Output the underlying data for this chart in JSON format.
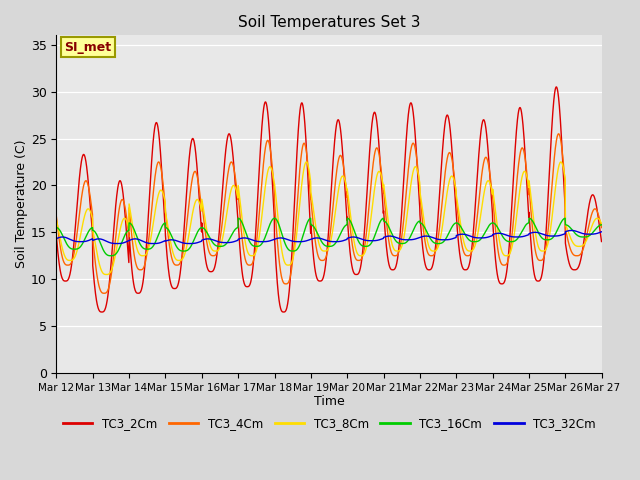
{
  "title": "Soil Temperatures Set 3",
  "xlabel": "Time",
  "ylabel": "Soil Temperature (C)",
  "ylim": [
    0,
    36
  ],
  "background_color": "#dcdcdc",
  "plot_bg_color": "#e8e8e8",
  "fig_bg_color": "#d8d8d8",
  "legend_labels": [
    "TC3_2Cm",
    "TC3_4Cm",
    "TC3_8Cm",
    "TC3_16Cm",
    "TC3_32Cm"
  ],
  "line_colors": [
    "#dd0000",
    "#ff6600",
    "#ffdd00",
    "#00cc00",
    "#0000dd"
  ],
  "annotation_text": "SI_met",
  "annotation_bg": "#ffff99",
  "annotation_border": "#999900",
  "xtick_labels": [
    "Mar 12",
    "Mar 13",
    "Mar 14",
    "Mar 15",
    "Mar 16",
    "Mar 17",
    "Mar 18",
    "Mar 19",
    "Mar 20",
    "Mar 21",
    "Mar 22",
    "Mar 23",
    "Mar 24",
    "Mar 25",
    "Mar 26",
    "Mar 27"
  ],
  "ytick_values": [
    0,
    5,
    10,
    15,
    20,
    25,
    30,
    35
  ],
  "n_days": 15,
  "ppd": 144,
  "peak_hour": 14,
  "peak_vals_2cm": [
    23.3,
    20.5,
    26.7,
    25.0,
    25.5,
    28.9,
    28.8,
    27.0,
    27.8,
    28.8,
    27.5,
    27.0,
    28.3,
    30.5,
    19.0,
    14.5
  ],
  "trough_vals_2cm": [
    9.8,
    6.5,
    8.5,
    9.0,
    10.8,
    9.2,
    6.5,
    9.8,
    10.5,
    11.0,
    11.0,
    11.0,
    9.5,
    9.8,
    11.0,
    13.5
  ],
  "peak_vals_4cm": [
    20.5,
    18.5,
    22.5,
    21.5,
    22.5,
    24.8,
    24.5,
    23.2,
    24.0,
    24.5,
    23.5,
    23.0,
    24.0,
    25.5,
    17.5,
    14.5
  ],
  "trough_vals_4cm": [
    11.5,
    8.5,
    11.0,
    11.5,
    12.5,
    11.5,
    9.5,
    12.0,
    12.0,
    12.5,
    12.5,
    12.5,
    11.5,
    12.0,
    12.5,
    13.8
  ],
  "peak_vals_8cm": [
    17.5,
    16.5,
    19.5,
    18.5,
    20.0,
    22.0,
    22.5,
    21.0,
    21.5,
    22.0,
    21.0,
    20.5,
    21.5,
    22.5,
    16.5,
    14.5
  ],
  "trough_vals_8cm": [
    12.0,
    10.5,
    12.5,
    12.0,
    13.0,
    12.5,
    11.5,
    13.0,
    12.5,
    13.0,
    13.0,
    13.0,
    12.5,
    13.0,
    13.5,
    14.0
  ],
  "peak_vals_16cm": [
    15.5,
    15.2,
    16.0,
    15.5,
    15.5,
    16.5,
    16.5,
    15.8,
    16.5,
    16.2,
    16.0,
    16.0,
    16.0,
    16.5,
    15.8,
    15.5
  ],
  "trough_vals_16cm": [
    13.2,
    12.5,
    13.2,
    13.0,
    13.5,
    13.5,
    13.0,
    13.5,
    13.5,
    13.8,
    13.8,
    14.0,
    14.0,
    14.2,
    14.5,
    14.8
  ],
  "peak_vals_32cm": [
    14.5,
    14.3,
    14.3,
    14.2,
    14.3,
    14.4,
    14.4,
    14.4,
    14.5,
    14.6,
    14.6,
    14.8,
    14.9,
    15.0,
    15.2,
    15.4
  ],
  "trough_vals_32cm": [
    14.0,
    13.8,
    13.8,
    13.8,
    13.9,
    14.0,
    14.0,
    14.0,
    14.1,
    14.2,
    14.2,
    14.4,
    14.5,
    14.6,
    14.8,
    15.0
  ],
  "phase_delay_hrs": [
    0,
    1.5,
    3.0,
    6.0,
    10.0
  ]
}
